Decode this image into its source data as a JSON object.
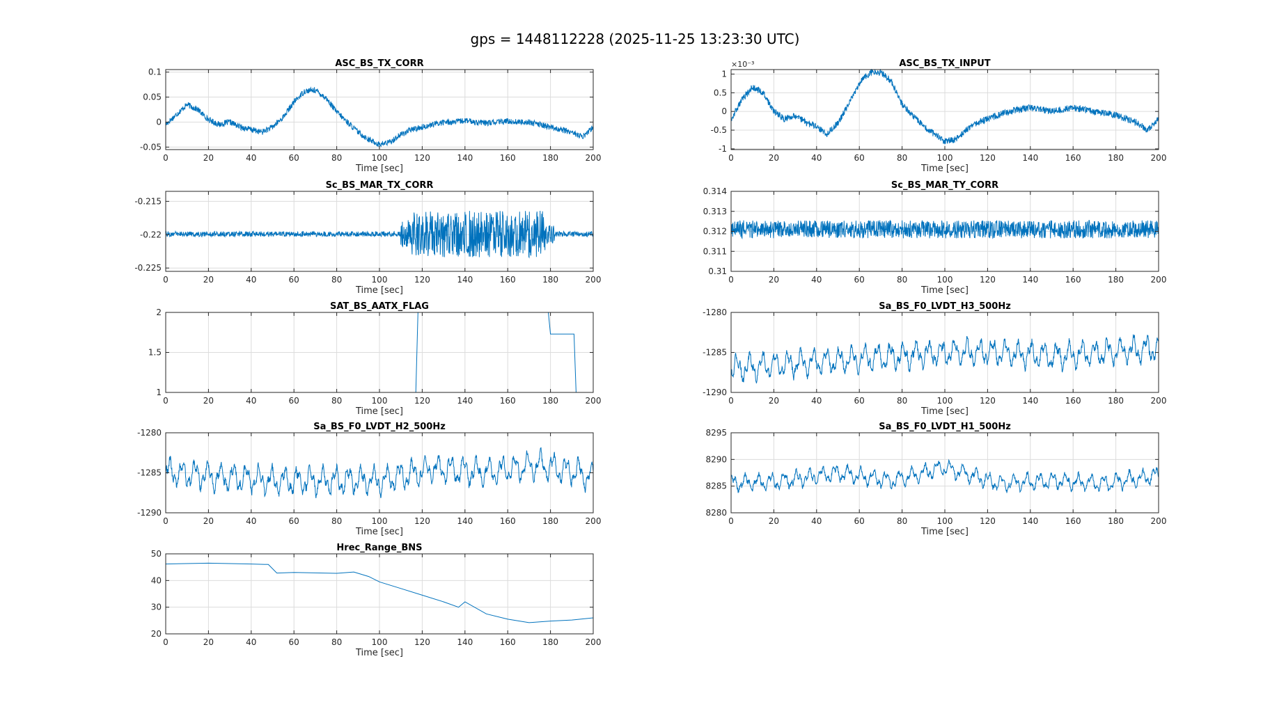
{
  "figure_title": "gps = 1448112228 (2025-11-25 13:23:30 UTC)",
  "colors": {
    "line": "#0072BD",
    "grid": "#dcdcdc",
    "axis": "#262626"
  },
  "chart_data": [
    {
      "type": "line",
      "title": "ASC_BS_TX_CORR",
      "xlabel": "Time [sec]",
      "x": [
        0,
        5,
        10,
        15,
        20,
        25,
        30,
        35,
        40,
        45,
        50,
        55,
        60,
        65,
        70,
        75,
        80,
        85,
        90,
        95,
        100,
        105,
        110,
        115,
        120,
        125,
        130,
        135,
        140,
        145,
        150,
        155,
        160,
        165,
        170,
        175,
        180,
        185,
        190,
        195,
        200
      ],
      "series": [
        {
          "values": [
            -0.005,
            0.015,
            0.035,
            0.025,
            0.005,
            -0.005,
            0.0,
            -0.01,
            -0.015,
            -0.02,
            -0.01,
            0.01,
            0.04,
            0.062,
            0.064,
            0.048,
            0.02,
            0.0,
            -0.02,
            -0.035,
            -0.045,
            -0.04,
            -0.025,
            -0.015,
            -0.01,
            -0.005,
            0.0,
            0.0,
            0.003,
            0.0,
            -0.002,
            0.0,
            0.002,
            0.0,
            0.0,
            -0.005,
            -0.01,
            -0.015,
            -0.02,
            -0.03,
            -0.01
          ]
        }
      ],
      "noise": 0.006,
      "ylim": [
        -0.055,
        0.105
      ],
      "yticks": [
        -0.05,
        0,
        0.05,
        0.1
      ],
      "ytick_labels": [
        "-0.05",
        "0",
        "0.05",
        "0.1"
      ],
      "xlim": [
        0,
        200
      ],
      "xticks": [
        0,
        20,
        40,
        60,
        80,
        100,
        120,
        140,
        160,
        180,
        200
      ],
      "grid": true
    },
    {
      "type": "line",
      "title": "ASC_BS_TX_INPUT",
      "xlabel": "Time [sec]",
      "y_exponent": "×10⁻³",
      "x": [
        0,
        5,
        10,
        15,
        20,
        25,
        30,
        35,
        40,
        45,
        50,
        55,
        60,
        65,
        70,
        75,
        80,
        85,
        90,
        95,
        100,
        105,
        110,
        115,
        120,
        125,
        130,
        135,
        140,
        145,
        150,
        155,
        160,
        165,
        170,
        175,
        180,
        185,
        190,
        195,
        200
      ],
      "series": [
        {
          "values": [
            -0.2,
            0.3,
            0.65,
            0.5,
            0.0,
            -0.2,
            -0.1,
            -0.3,
            -0.4,
            -0.6,
            -0.3,
            0.2,
            0.75,
            1.05,
            1.05,
            0.8,
            0.2,
            -0.1,
            -0.4,
            -0.6,
            -0.8,
            -0.75,
            -0.5,
            -0.3,
            -0.2,
            -0.1,
            0.0,
            0.05,
            0.1,
            0.05,
            0.0,
            0.05,
            0.1,
            0.05,
            0.0,
            -0.05,
            -0.1,
            -0.2,
            -0.3,
            -0.5,
            -0.2
          ]
        }
      ],
      "noise": 0.09,
      "ylim": [
        -1.02,
        1.12
      ],
      "yticks": [
        -1,
        -0.5,
        0,
        0.5,
        1
      ],
      "ytick_labels": [
        "-1",
        "-0.5",
        "0",
        "0.5",
        "1"
      ],
      "xlim": [
        0,
        200
      ],
      "xticks": [
        0,
        20,
        40,
        60,
        80,
        100,
        120,
        140,
        160,
        180,
        200
      ],
      "grid": true
    },
    {
      "type": "line",
      "title": "Sc_BS_MAR_TX_CORR",
      "xlabel": "Time [sec]",
      "x": [
        0,
        100,
        110,
        115,
        120,
        170,
        178,
        182,
        200
      ],
      "series": [
        {
          "values": [
            -0.2199,
            -0.2199,
            -0.2199,
            -0.2198,
            -0.2199,
            -0.2199,
            -0.2199,
            -0.2199,
            -0.2199
          ]
        }
      ],
      "noise_segments": [
        [
          0,
          110,
          0.0004
        ],
        [
          110,
          115,
          0.002
        ],
        [
          115,
          178,
          0.0035
        ],
        [
          178,
          182,
          0.0015
        ],
        [
          182,
          200,
          0.0004
        ]
      ],
      "ylim": [
        -0.2255,
        -0.2135
      ],
      "yticks": [
        -0.225,
        -0.22,
        -0.215
      ],
      "ytick_labels": [
        "-0.225",
        "-0.22",
        "-0.215"
      ],
      "xlim": [
        0,
        200
      ],
      "xticks": [
        0,
        20,
        40,
        60,
        80,
        100,
        120,
        140,
        160,
        180,
        200
      ],
      "grid": true
    },
    {
      "type": "line",
      "title": "Sc_BS_MAR_TY_CORR",
      "xlabel": "Time [sec]",
      "x": [
        0,
        200
      ],
      "series": [
        {
          "values": [
            0.3121,
            0.3121
          ]
        }
      ],
      "noise": 0.00045,
      "ylim": [
        0.31,
        0.314
      ],
      "yticks": [
        0.31,
        0.311,
        0.312,
        0.313,
        0.314
      ],
      "ytick_labels": [
        "0.31",
        "0.311",
        "0.312",
        "0.313",
        "0.314"
      ],
      "xlim": [
        0,
        200
      ],
      "xticks": [
        0,
        20,
        40,
        60,
        80,
        100,
        120,
        140,
        160,
        180,
        200
      ],
      "grid": true
    },
    {
      "type": "line",
      "title": "SAT_BS_AATX_FLAG",
      "xlabel": "Time [sec]",
      "step": true,
      "x": [
        0,
        117,
        118,
        179,
        180,
        191,
        192,
        200
      ],
      "series": [
        {
          "values": [
            1,
            1,
            2,
            2,
            1.73,
            1.73,
            1,
            1
          ]
        }
      ],
      "noise": 0,
      "ylim": [
        1,
        2
      ],
      "yticks": [
        1,
        1.5,
        2
      ],
      "ytick_labels": [
        "1",
        "1.5",
        "2"
      ],
      "xlim": [
        0,
        200
      ],
      "xticks": [
        0,
        20,
        40,
        60,
        80,
        100,
        120,
        140,
        160,
        180,
        200
      ],
      "grid": true
    },
    {
      "type": "line",
      "title": "Sa_BS_F0_LVDT_H3_500Hz",
      "xlabel": "Time [sec]",
      "x": [
        0,
        25,
        50,
        75,
        100,
        125,
        150,
        175,
        200
      ],
      "series": [
        {
          "values": [
            -1287,
            -1286.5,
            -1286,
            -1285.5,
            -1285,
            -1285,
            -1285.5,
            -1285,
            -1284.5
          ]
        }
      ],
      "oscillation": 1.8,
      "noise": 0.4,
      "ylim": [
        -1290,
        -1280
      ],
      "yticks": [
        -1290,
        -1285,
        -1280
      ],
      "ytick_labels": [
        "-1290",
        "-1285",
        "-1280"
      ],
      "xlim": [
        0,
        200
      ],
      "xticks": [
        0,
        20,
        40,
        60,
        80,
        100,
        120,
        140,
        160,
        180,
        200
      ],
      "grid": true
    },
    {
      "type": "line",
      "title": "Sa_BS_F0_LVDT_H2_500Hz",
      "xlabel": "Time [sec]",
      "x": [
        0,
        25,
        50,
        75,
        100,
        125,
        150,
        175,
        200
      ],
      "series": [
        {
          "values": [
            -1285,
            -1285.5,
            -1286,
            -1286,
            -1286,
            -1284.5,
            -1285,
            -1284,
            -1285.5
          ]
        }
      ],
      "oscillation": 1.9,
      "noise": 0.4,
      "ylim": [
        -1290,
        -1280
      ],
      "yticks": [
        -1290,
        -1285,
        -1280
      ],
      "ytick_labels": [
        "-1290",
        "-1285",
        "-1280"
      ],
      "xlim": [
        0,
        200
      ],
      "xticks": [
        0,
        20,
        40,
        60,
        80,
        100,
        120,
        140,
        160,
        180,
        200
      ],
      "grid": true
    },
    {
      "type": "line",
      "title": "Sa_BS_F0_LVDT_H1_500Hz",
      "xlabel": "Time [sec]",
      "x": [
        0,
        25,
        50,
        75,
        100,
        125,
        150,
        175,
        200
      ],
      "series": [
        {
          "values": [
            8285.5,
            8286,
            8287.5,
            8286,
            8288.5,
            8285.5,
            8286,
            8285.5,
            8287
          ]
        }
      ],
      "oscillation": 1.7,
      "noise": 0.4,
      "ylim": [
        8280,
        8295
      ],
      "yticks": [
        8280,
        8285,
        8290,
        8295
      ],
      "ytick_labels": [
        "8280",
        "8285",
        "8290",
        "8295"
      ],
      "xlim": [
        0,
        200
      ],
      "xticks": [
        0,
        20,
        40,
        60,
        80,
        100,
        120,
        140,
        160,
        180,
        200
      ],
      "grid": true
    },
    {
      "type": "line",
      "title": "Hrec_Range_BNS",
      "xlabel": "Time [sec]",
      "x": [
        0,
        20,
        40,
        48,
        52,
        60,
        80,
        88,
        95,
        100,
        110,
        120,
        130,
        137,
        140,
        150,
        160,
        170,
        175,
        180,
        190,
        200
      ],
      "series": [
        {
          "values": [
            46.2,
            46.5,
            46.2,
            46.0,
            42.8,
            43.0,
            42.7,
            43.2,
            41.5,
            39.5,
            37.0,
            34.5,
            32.0,
            30.0,
            32.0,
            27.5,
            25.5,
            24.2,
            24.5,
            24.8,
            25.2,
            26.0
          ]
        }
      ],
      "noise": 0,
      "ylim": [
        20,
        50
      ],
      "yticks": [
        20,
        30,
        40,
        50
      ],
      "ytick_labels": [
        "20",
        "30",
        "40",
        "50"
      ],
      "xlim": [
        0,
        200
      ],
      "xticks": [
        0,
        20,
        40,
        60,
        80,
        100,
        120,
        140,
        160,
        180,
        200
      ],
      "grid": true
    }
  ]
}
